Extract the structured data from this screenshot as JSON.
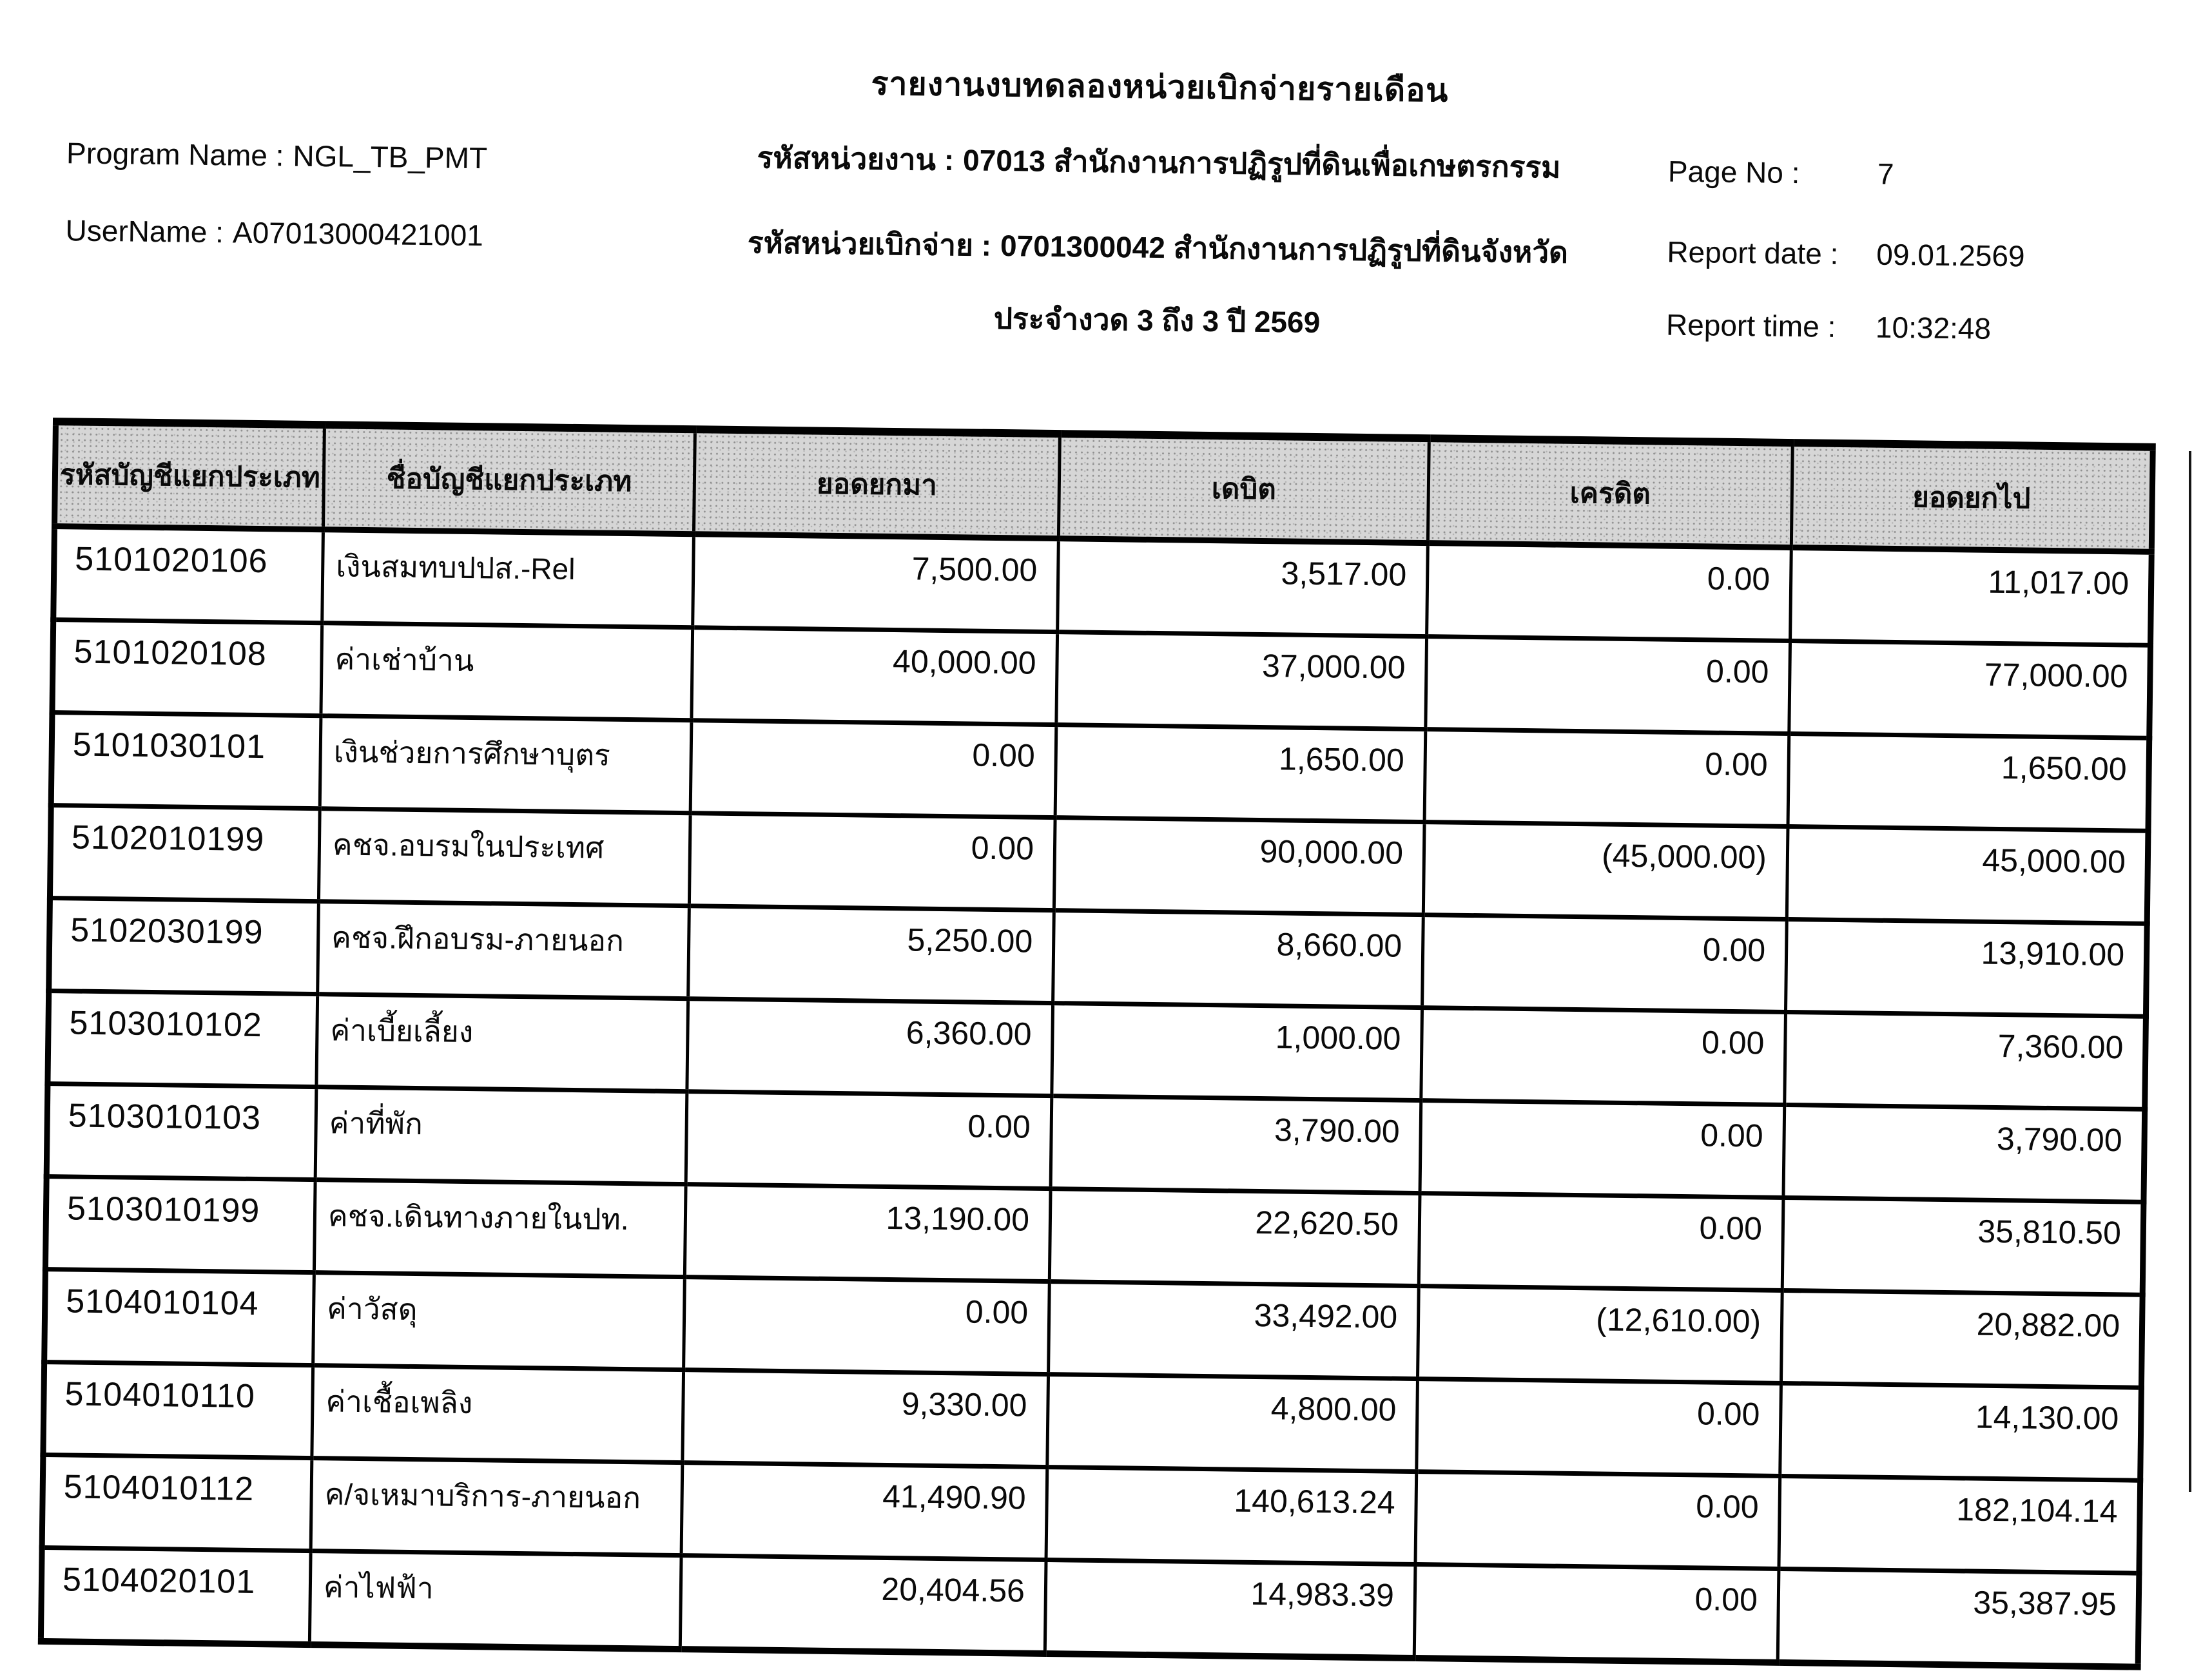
{
  "report": {
    "title": "รายงานงบทดลองหน่วยเบิกจ่ายรายเดือน",
    "program_name_label": "Program Name :",
    "program_name_value": "NGL_TB_PMT",
    "username_label": "UserName :",
    "username_value": "A07013000421001",
    "agency_label": "รหัสหน่วยงาน :",
    "agency_value": "07013 สำนักงานการปฏิรูปที่ดินเพื่อเกษตรกรรม",
    "disburse_label": "รหัสหน่วยเบิกจ่าย :",
    "disburse_value": "0701300042 สำนักงานการปฏิรูปที่ดินจังหวัด",
    "period_line": "ประจำงวด 3 ถึง 3 ปี 2569",
    "page_no_label": "Page No :",
    "page_no_value": "7",
    "report_date_label": "Report date :",
    "report_date_value": "09.01.2569",
    "report_time_label": "Report time :",
    "report_time_value": "10:32:48"
  },
  "table": {
    "columns": [
      "รหัสบัญชีแยกประเภท",
      "ชื่อบัญชีแยกประเภท",
      "ยอดยกมา",
      "เดบิต",
      "เครดิต",
      "ยอดยกไป"
    ],
    "rows": [
      [
        "5101020106",
        "เงินสมทบปปส.-Rel",
        "7,500.00",
        "3,517.00",
        "0.00",
        "11,017.00"
      ],
      [
        "5101020108",
        "ค่าเช่าบ้าน",
        "40,000.00",
        "37,000.00",
        "0.00",
        "77,000.00"
      ],
      [
        "5101030101",
        "เงินช่วยการศึกษาบุตร",
        "0.00",
        "1,650.00",
        "0.00",
        "1,650.00"
      ],
      [
        "5102010199",
        "คชจ.อบรมในประเทศ",
        "0.00",
        "90,000.00",
        "(45,000.00)",
        "45,000.00"
      ],
      [
        "5102030199",
        "คชจ.ฝึกอบรม-ภายนอก",
        "5,250.00",
        "8,660.00",
        "0.00",
        "13,910.00"
      ],
      [
        "5103010102",
        "ค่าเบี้ยเลี้ยง",
        "6,360.00",
        "1,000.00",
        "0.00",
        "7,360.00"
      ],
      [
        "5103010103",
        "ค่าที่พัก",
        "0.00",
        "3,790.00",
        "0.00",
        "3,790.00"
      ],
      [
        "5103010199",
        "คชจ.เดินทางภายในปท.",
        "13,190.00",
        "22,620.50",
        "0.00",
        "35,810.50"
      ],
      [
        "5104010104",
        "ค่าวัสดุ",
        "0.00",
        "33,492.00",
        "(12,610.00)",
        "20,882.00"
      ],
      [
        "5104010110",
        "ค่าเชื้อเพลิง",
        "9,330.00",
        "4,800.00",
        "0.00",
        "14,130.00"
      ],
      [
        "5104010112",
        "ค/จเหมาบริการ-ภายนอก",
        "41,490.90",
        "140,613.24",
        "0.00",
        "182,104.14"
      ],
      [
        "5104020101",
        "ค่าไฟฟ้า",
        "20,404.56",
        "14,983.39",
        "0.00",
        "35,387.95"
      ]
    ]
  }
}
